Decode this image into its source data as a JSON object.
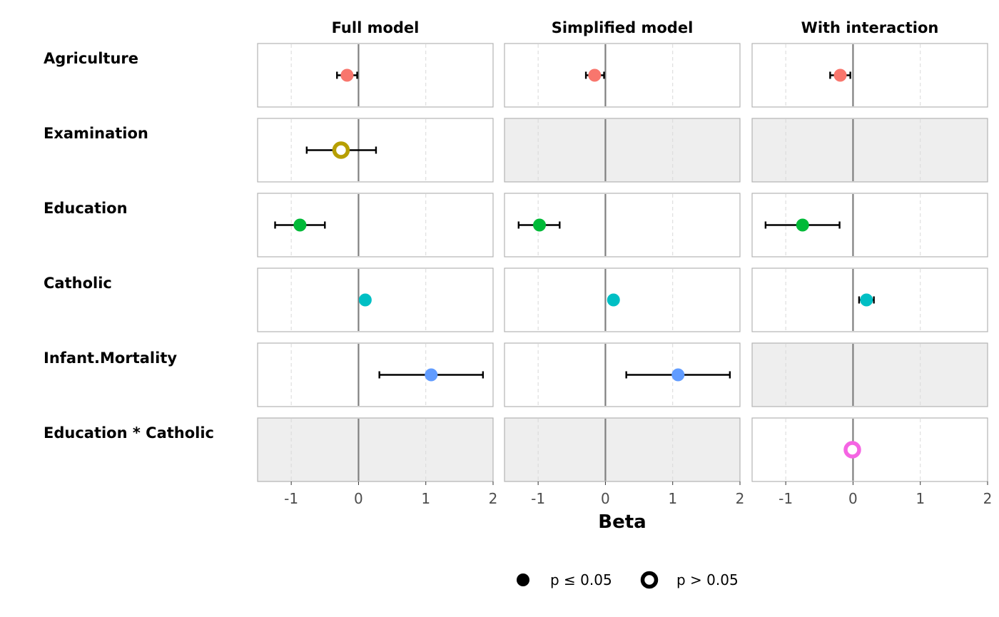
{
  "chart_data": {
    "type": "scatter",
    "xlabel": "Beta",
    "xlim": [
      -1.5,
      2
    ],
    "xticks": [
      -1,
      0,
      1,
      2
    ],
    "xtick_labels": [
      "-1",
      "0",
      "1",
      "2"
    ],
    "grid": true,
    "legend_position": "bottom",
    "models": [
      "Full model",
      "Simplified model",
      "With interaction"
    ],
    "terms": [
      "Agriculture",
      "Examination",
      "Education",
      "Catholic",
      "Infant.Mortality",
      "Education * Catholic"
    ],
    "term_colors": {
      "Agriculture": "#F8766D",
      "Examination": "#B79F00",
      "Education": "#00BA38",
      "Catholic": "#00BFC4",
      "Infant.Mortality": "#619CFF",
      "Education * Catholic": "#F564E3"
    },
    "points": [
      {
        "model": "Full model",
        "term": "Agriculture",
        "beta": -0.17,
        "ci_low": -0.32,
        "ci_high": -0.02,
        "significant": true
      },
      {
        "model": "Full model",
        "term": "Examination",
        "beta": -0.26,
        "ci_low": -0.77,
        "ci_high": 0.26,
        "significant": false
      },
      {
        "model": "Full model",
        "term": "Education",
        "beta": -0.87,
        "ci_low": -1.24,
        "ci_high": -0.5,
        "significant": true
      },
      {
        "model": "Full model",
        "term": "Catholic",
        "beta": 0.1,
        "ci_low": 0.05,
        "ci_high": 0.15,
        "significant": true
      },
      {
        "model": "Full model",
        "term": "Infant.Mortality",
        "beta": 1.08,
        "ci_low": 0.31,
        "ci_high": 1.85,
        "significant": true
      },
      {
        "model": "Simplified model",
        "term": "Agriculture",
        "beta": -0.16,
        "ci_low": -0.29,
        "ci_high": -0.02,
        "significant": true
      },
      {
        "model": "Simplified model",
        "term": "Education",
        "beta": -0.98,
        "ci_low": -1.29,
        "ci_high": -0.68,
        "significant": true
      },
      {
        "model": "Simplified model",
        "term": "Catholic",
        "beta": 0.12,
        "ci_low": 0.07,
        "ci_high": 0.17,
        "significant": true
      },
      {
        "model": "Simplified model",
        "term": "Infant.Mortality",
        "beta": 1.08,
        "ci_low": 0.31,
        "ci_high": 1.85,
        "significant": true
      },
      {
        "model": "With interaction",
        "term": "Agriculture",
        "beta": -0.19,
        "ci_low": -0.34,
        "ci_high": -0.04,
        "significant": true
      },
      {
        "model": "With interaction",
        "term": "Education",
        "beta": -0.75,
        "ci_low": -1.3,
        "ci_high": -0.2,
        "significant": true
      },
      {
        "model": "With interaction",
        "term": "Catholic",
        "beta": 0.2,
        "ci_low": 0.09,
        "ci_high": 0.31,
        "significant": true
      },
      {
        "model": "With interaction",
        "term": "Education * Catholic",
        "beta": -0.01,
        "ci_low": -0.02,
        "ci_high": 0.0,
        "significant": false
      }
    ],
    "legend": [
      {
        "label": "p ≤ 0.05",
        "significant": true
      },
      {
        "label": "p > 0.05",
        "significant": false
      }
    ]
  }
}
